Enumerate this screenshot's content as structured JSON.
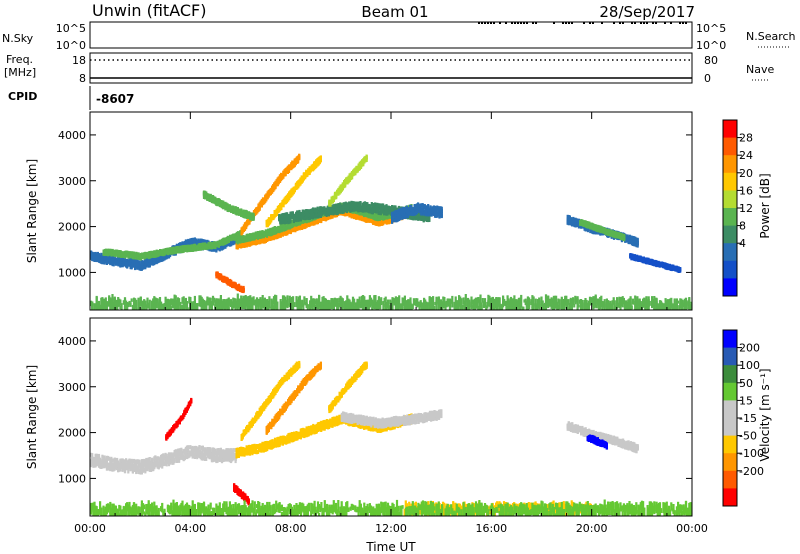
{
  "header": {
    "station": "Unwin (fitACF)",
    "beam": "Beam 01",
    "date": "28/Sep/2017"
  },
  "panels": {
    "nsky": {
      "left_label": "N.Sky",
      "right_label": "N.Search",
      "top_tick": "10^5",
      "bottom_tick": "10^0",
      "right_top_tick": "10^5",
      "right_bottom_tick": "10^0"
    },
    "freq": {
      "left_label_1": "Freq.",
      "left_label_2": "[MHz]",
      "right_label": "Nave",
      "top_tick": "18",
      "bottom_tick": "8",
      "right_top_tick": "80",
      "right_bottom_tick": "0"
    },
    "cpid": {
      "label": "CPID",
      "value": "-8607"
    }
  },
  "colorbars": {
    "power": {
      "label": "Power [dB]",
      "ticks": [
        "28",
        "24",
        "20",
        "16",
        "12",
        "8",
        "4"
      ],
      "colors": [
        "#ff0000",
        "#ff5a00",
        "#ff9600",
        "#ffc800",
        "#b4dc32",
        "#5ab450",
        "#3c8c64",
        "#286eb4",
        "#1450c8",
        "#0000ff"
      ]
    },
    "velocity": {
      "label": "Velocity [m s⁻¹]",
      "ticks": [
        "200",
        "100",
        "50",
        "15",
        "-15",
        "-50",
        "-100",
        "-200"
      ],
      "colors": [
        "#0000ff",
        "#285ab4",
        "#3c8c3c",
        "#64c832",
        "#c8c8c8",
        "#c8c8c8",
        "#ffc800",
        "#ff9600",
        "#ff5a00",
        "#ff0000"
      ]
    }
  },
  "chart_data": [
    {
      "type": "heatmap",
      "name": "power",
      "ylabel": "Slant Range [km]",
      "xlim": [
        0,
        24
      ],
      "ylim": [
        180,
        4500
      ],
      "yticks": [
        "1000",
        "2000",
        "3000",
        "4000"
      ],
      "bands": [
        {
          "x": [
            0.0,
            1.0,
            2.0,
            3.0,
            4.0,
            5.0,
            5.8
          ],
          "y": [
            1350,
            1250,
            1150,
            1400,
            1650,
            1550,
            1750
          ],
          "w": 170,
          "c": "#286eb4"
        },
        {
          "x": [
            0.5,
            2.0,
            3.5,
            5.0,
            6.0
          ],
          "y": [
            1450,
            1350,
            1500,
            1600,
            1850
          ],
          "w": 90,
          "c": "#5ab450"
        },
        {
          "x": [
            5.8,
            7.0,
            8.5,
            10.0,
            11.5,
            12.8
          ],
          "y": [
            1600,
            1750,
            2050,
            2350,
            2100,
            2300
          ],
          "w": 130,
          "c": "#ff9600"
        },
        {
          "x": [
            5.8,
            7.0,
            8.5,
            10.0,
            11.5,
            12.8
          ],
          "y": [
            1700,
            1850,
            2150,
            2450,
            2200,
            2400
          ],
          "w": 110,
          "c": "#5ab450"
        },
        {
          "x": [
            7.5,
            9.0,
            10.5,
            12.0,
            13.5
          ],
          "y": [
            2150,
            2300,
            2450,
            2350,
            2200
          ],
          "w": 180,
          "c": "#3c8c64"
        },
        {
          "x": [
            12.0,
            13.0,
            14.0
          ],
          "y": [
            2200,
            2400,
            2300
          ],
          "w": 200,
          "c": "#286eb4"
        },
        {
          "x": [
            6.0,
            6.8,
            7.6,
            8.3
          ],
          "y": [
            1900,
            2500,
            3100,
            3500
          ],
          "w": 110,
          "c": "#ff9600"
        },
        {
          "x": [
            7.0,
            7.8,
            8.5,
            9.2
          ],
          "y": [
            2050,
            2600,
            3100,
            3500
          ],
          "w": 110,
          "c": "#ffc800"
        },
        {
          "x": [
            9.5,
            10.2,
            11.0
          ],
          "y": [
            2500,
            3000,
            3500
          ],
          "w": 110,
          "c": "#b4dc32"
        },
        {
          "x": [
            4.5,
            5.5,
            6.5
          ],
          "y": [
            2700,
            2400,
            2200
          ],
          "w": 110,
          "c": "#5ab450"
        },
        {
          "x": [
            19.0,
            20.0,
            21.0,
            21.8
          ],
          "y": [
            2150,
            1950,
            1800,
            1650
          ],
          "w": 140,
          "c": "#286eb4"
        },
        {
          "x": [
            19.5,
            20.5,
            21.3
          ],
          "y": [
            2100,
            1900,
            1750
          ],
          "w": 80,
          "c": "#5ab450"
        },
        {
          "x": [
            21.5,
            22.5,
            23.5
          ],
          "y": [
            1350,
            1200,
            1050
          ],
          "w": 70,
          "c": "#1450c8"
        },
        {
          "x": [
            5.0,
            5.7,
            6.1
          ],
          "y": [
            950,
            720,
            620
          ],
          "w": 90,
          "c": "#ff5a00"
        },
        {
          "x": [
            0.0,
            24.0
          ],
          "y": [
            300,
            300
          ],
          "w": 200,
          "c": "#5ab450",
          "sparse": true
        }
      ]
    },
    {
      "type": "heatmap",
      "name": "velocity",
      "ylabel": "Slant Range [km]",
      "xlabel": "Time UT",
      "xlim": [
        0,
        24
      ],
      "ylim": [
        180,
        4500
      ],
      "yticks": [
        "1000",
        "2000",
        "3000",
        "4000"
      ],
      "xticks": [
        "00:00",
        "04:00",
        "08:00",
        "12:00",
        "16:00",
        "20:00",
        "00:00"
      ],
      "bands": [
        {
          "x": [
            0.0,
            1.0,
            2.0,
            3.0,
            4.0,
            5.0,
            5.8
          ],
          "y": [
            1400,
            1300,
            1250,
            1400,
            1600,
            1500,
            1500
          ],
          "w": 250,
          "c": "#c8c8c8"
        },
        {
          "x": [
            5.8,
            7.0,
            8.5,
            10.0,
            11.5,
            12.8
          ],
          "y": [
            1550,
            1700,
            2000,
            2300,
            2100,
            2300
          ],
          "w": 160,
          "c": "#ffc800"
        },
        {
          "x": [
            6.0,
            6.8,
            7.6,
            8.3
          ],
          "y": [
            1900,
            2500,
            3100,
            3500
          ],
          "w": 120,
          "c": "#ffc800"
        },
        {
          "x": [
            7.0,
            7.8,
            8.5,
            9.2
          ],
          "y": [
            2050,
            2600,
            3100,
            3500
          ],
          "w": 120,
          "c": "#ff9600"
        },
        {
          "x": [
            9.5,
            10.2,
            11.0
          ],
          "y": [
            2500,
            3000,
            3500
          ],
          "w": 120,
          "c": "#ffc800"
        },
        {
          "x": [
            10.0,
            11.5,
            13.0,
            14.0
          ],
          "y": [
            2350,
            2200,
            2300,
            2400
          ],
          "w": 160,
          "c": "#c8c8c8"
        },
        {
          "x": [
            3.0,
            3.6,
            4.0
          ],
          "y": [
            1900,
            2300,
            2700
          ],
          "w": 80,
          "c": "#ff0000"
        },
        {
          "x": [
            5.7,
            6.0,
            6.3
          ],
          "y": [
            800,
            650,
            500
          ],
          "w": 110,
          "c": "#ff0000"
        },
        {
          "x": [
            19.0,
            20.0,
            21.0,
            21.8
          ],
          "y": [
            2150,
            1950,
            1800,
            1650
          ],
          "w": 140,
          "c": "#c8c8c8"
        },
        {
          "x": [
            19.8,
            20.3,
            20.6
          ],
          "y": [
            1900,
            1780,
            1700
          ],
          "w": 110,
          "c": "#0000ff"
        },
        {
          "x": [
            12.5,
            15.0,
            17.5,
            20.0
          ],
          "y": [
            320,
            330,
            340,
            320
          ],
          "w": 130,
          "c": "#ffc800",
          "sparse": true
        },
        {
          "x": [
            0.0,
            24.0
          ],
          "y": [
            300,
            300
          ],
          "w": 200,
          "c": "#64c832",
          "sparse": true
        }
      ]
    }
  ]
}
